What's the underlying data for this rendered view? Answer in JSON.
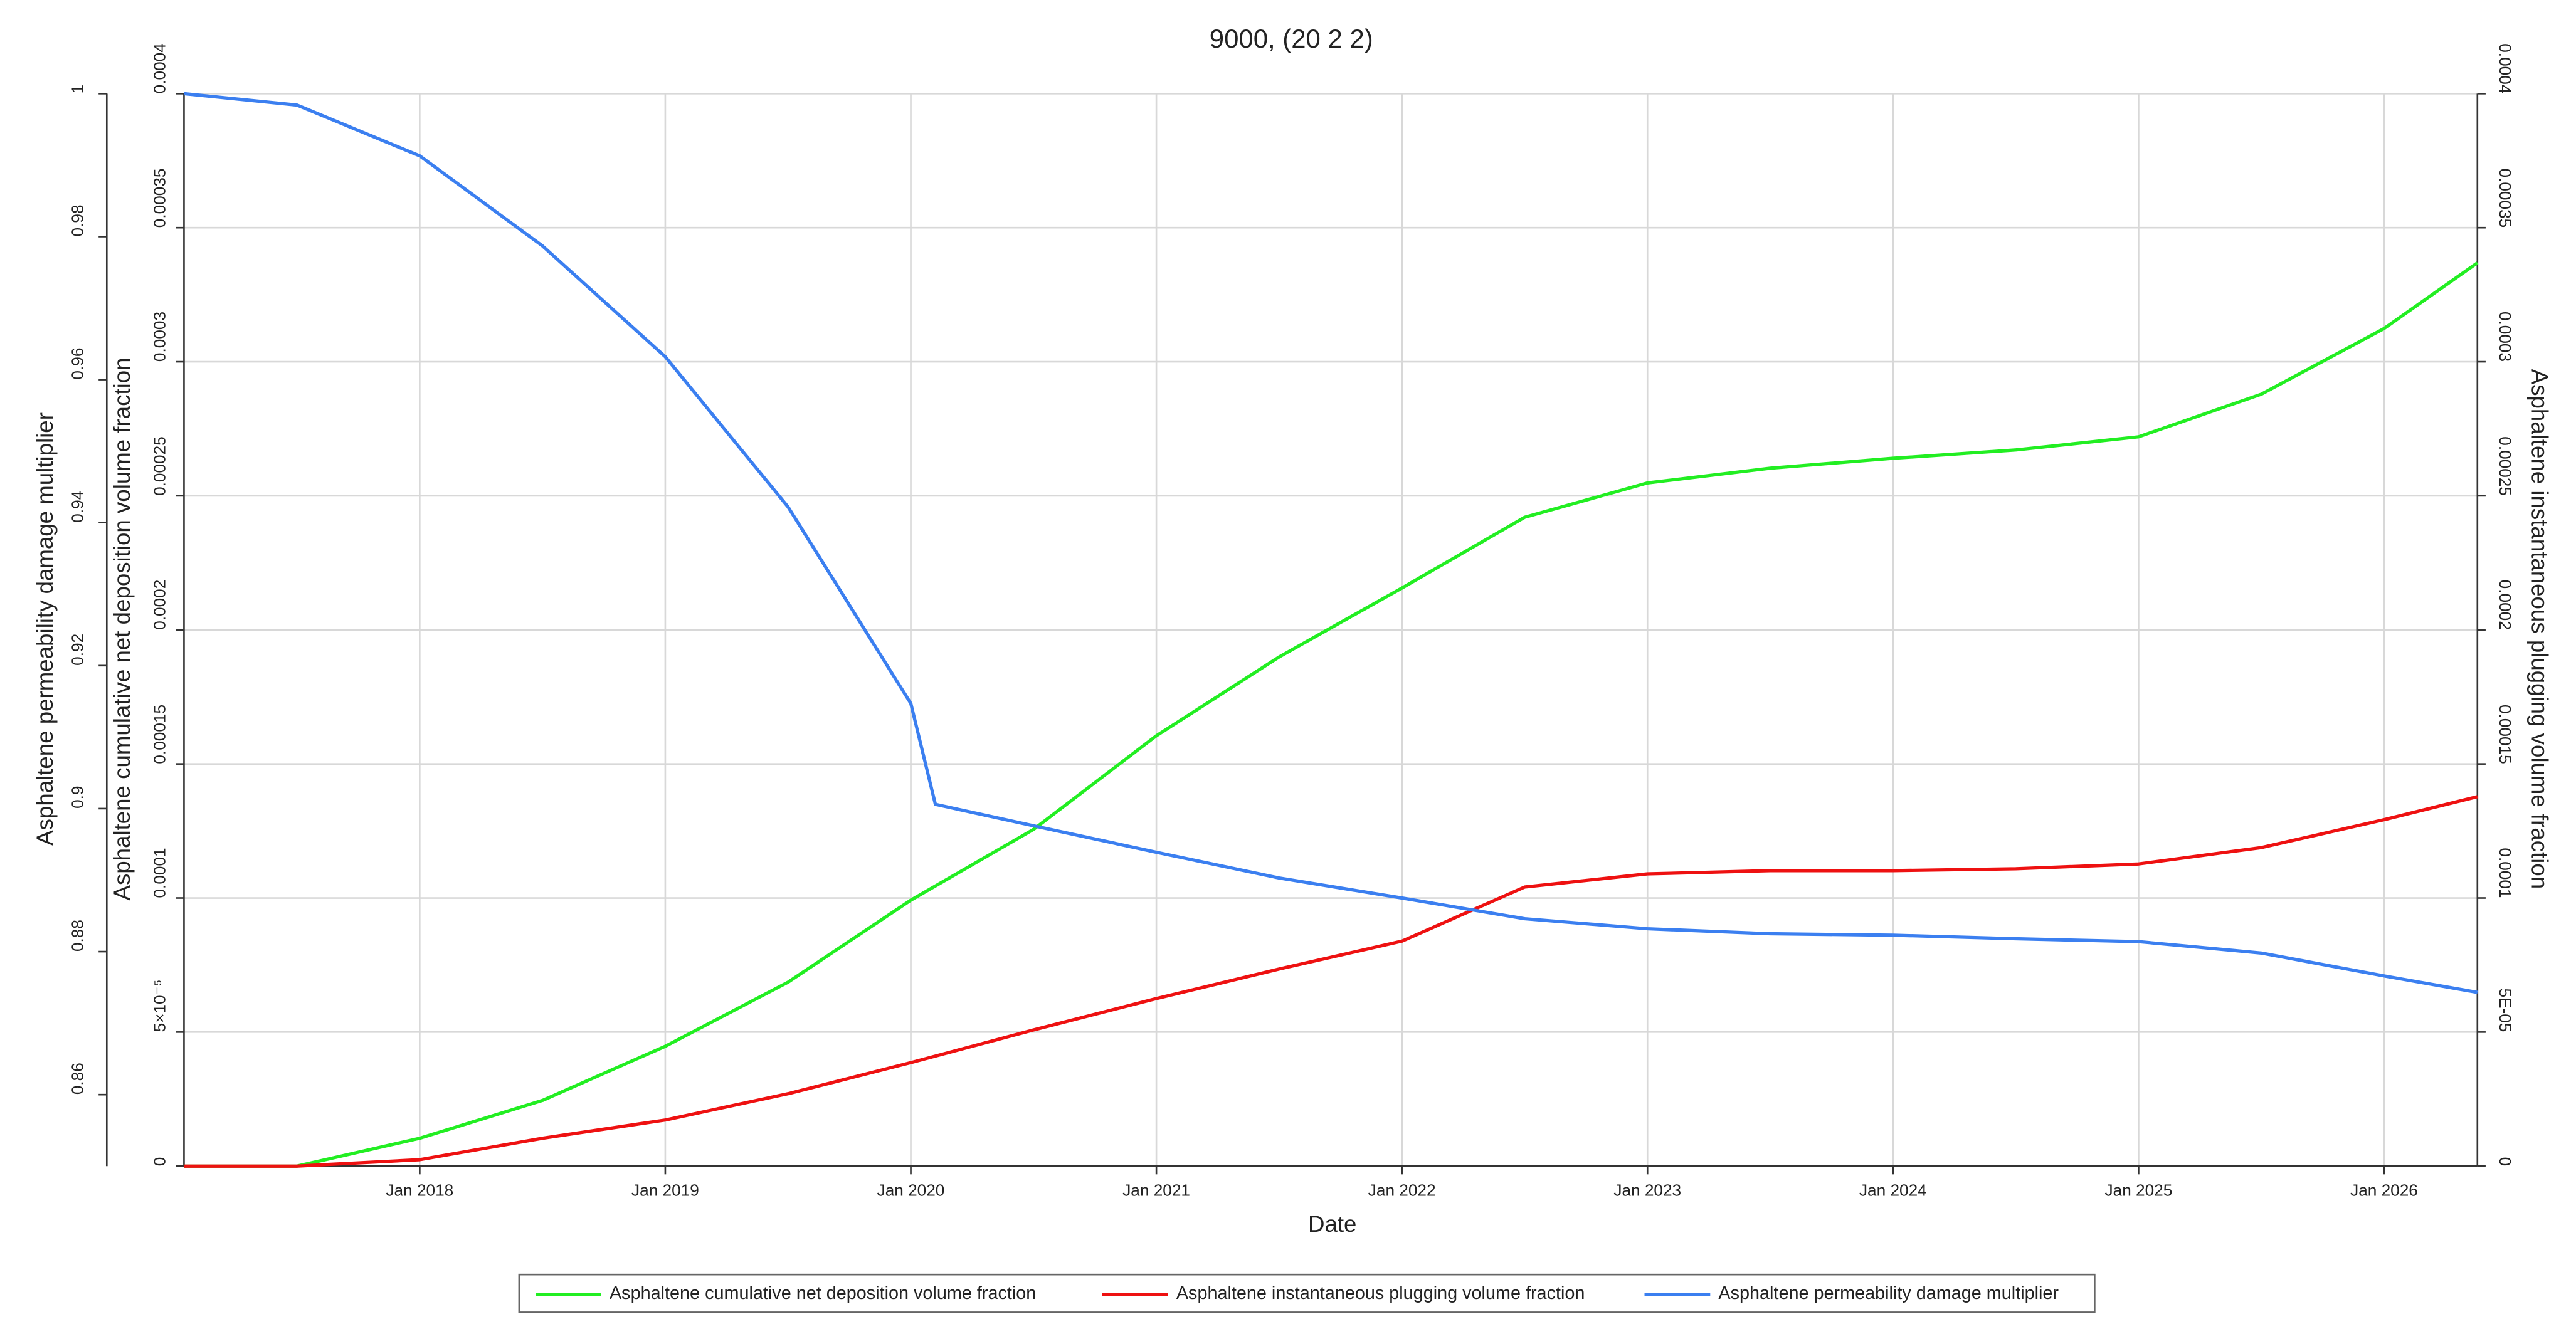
{
  "chart_data": {
    "type": "line",
    "title": "9000, (20 2 2)",
    "xlabel": "Date",
    "ylabel": "Asphaltene cumulative net deposition volume fraction",
    "y2label": "Asphaltene instantaneous plugging volume fraction",
    "y3label": "Asphaltene permeability damage multiplier",
    "xlim": [
      2017.04,
      2026.38
    ],
    "xticks": [
      {
        "value": 2018,
        "label": "Jan 2018"
      },
      {
        "value": 2019,
        "label": "Jan 2019"
      },
      {
        "value": 2020,
        "label": "Jan 2020"
      },
      {
        "value": 2021,
        "label": "Jan 2021"
      },
      {
        "value": 2022,
        "label": "Jan 2022"
      },
      {
        "value": 2023,
        "label": "Jan 2023"
      },
      {
        "value": 2024,
        "label": "Jan 2024"
      },
      {
        "value": 2025,
        "label": "Jan 2025"
      },
      {
        "value": 2026,
        "label": "Jan 2026"
      }
    ],
    "ylim": [
      0,
      0.0004
    ],
    "yticks": [
      0,
      {
        "value": 5e-05,
        "label": "5×10⁻⁵"
      },
      0.0001,
      0.00015,
      0.0002,
      0.00025,
      0.0003,
      0.00035,
      0.0004
    ],
    "y2lim": [
      0,
      0.0004
    ],
    "y2ticks": [
      0,
      {
        "value": 5e-05,
        "label": "5E-05"
      },
      0.0001,
      0.00015,
      0.0002,
      0.00025,
      0.0003,
      0.00035,
      0.0004
    ],
    "y3lim": [
      0.85,
      1
    ],
    "y3ticks": [
      0.86,
      0.88,
      0.9,
      0.92,
      0.94,
      0.96,
      0.98,
      1
    ],
    "grid": true,
    "legend": "bottom",
    "series": [
      {
        "name": "Asphaltene cumulative net deposition volume fraction",
        "color": "#22ee22",
        "axis": "y",
        "x": [
          2017.04,
          2017.5,
          2018,
          2018.5,
          2019,
          2019.5,
          2020,
          2020.5,
          2021,
          2021.5,
          2022,
          2022.5,
          2023,
          2023.5,
          2024,
          2024.5,
          2025,
          2025.5,
          2026,
          2026.38
        ],
        "values": [
          0,
          0,
          1.04e-05,
          2.45e-05,
          4.47e-05,
          6.86e-05,
          9.92e-05,
          0.0001256,
          0.0001605,
          0.0001899,
          0.0002156,
          0.000242,
          0.0002548,
          0.0002603,
          0.000264,
          0.0002671,
          0.000272,
          0.0002879,
          0.0003124,
          0.0003369
        ]
      },
      {
        "name": "Asphaltene instantaneous plugging volume fraction",
        "color": "#ee1111",
        "axis": "y2",
        "x": [
          2017.04,
          2017.5,
          2018,
          2018.5,
          2019,
          2019.5,
          2020,
          2020.5,
          2021,
          2021.5,
          2022,
          2022.5,
          2023,
          2023.5,
          2024,
          2024.5,
          2025,
          2025.5,
          2026,
          2026.38
        ],
        "values": [
          0,
          0,
          2.4e-06,
          1.04e-05,
          1.72e-05,
          2.7e-05,
          3.86e-05,
          5.08e-05,
          6.25e-05,
          7.35e-05,
          8.39e-05,
          0.0001041,
          0.000109,
          0.0001102,
          0.0001102,
          0.0001109,
          0.0001127,
          0.0001188,
          0.0001292,
          0.0001378
        ]
      },
      {
        "name": "Asphaltene permeability damage multiplier",
        "color": "#3b7ff0",
        "axis": "y3",
        "x": [
          2017.04,
          2017.5,
          2018,
          2018.5,
          2019,
          2019.5,
          2020,
          2020.1,
          2020.5,
          2021,
          2021.5,
          2022,
          2022.5,
          2023,
          2023.5,
          2024,
          2024.5,
          2025,
          2025.5,
          2026,
          2026.38
        ],
        "values": [
          1,
          0.9984,
          0.9913,
          0.9787,
          0.9632,
          0.9422,
          0.9147,
          0.9006,
          0.8976,
          0.8939,
          0.8903,
          0.8875,
          0.8846,
          0.8832,
          0.8825,
          0.8823,
          0.8818,
          0.8814,
          0.8798,
          0.8766,
          0.8743
        ]
      }
    ]
  }
}
